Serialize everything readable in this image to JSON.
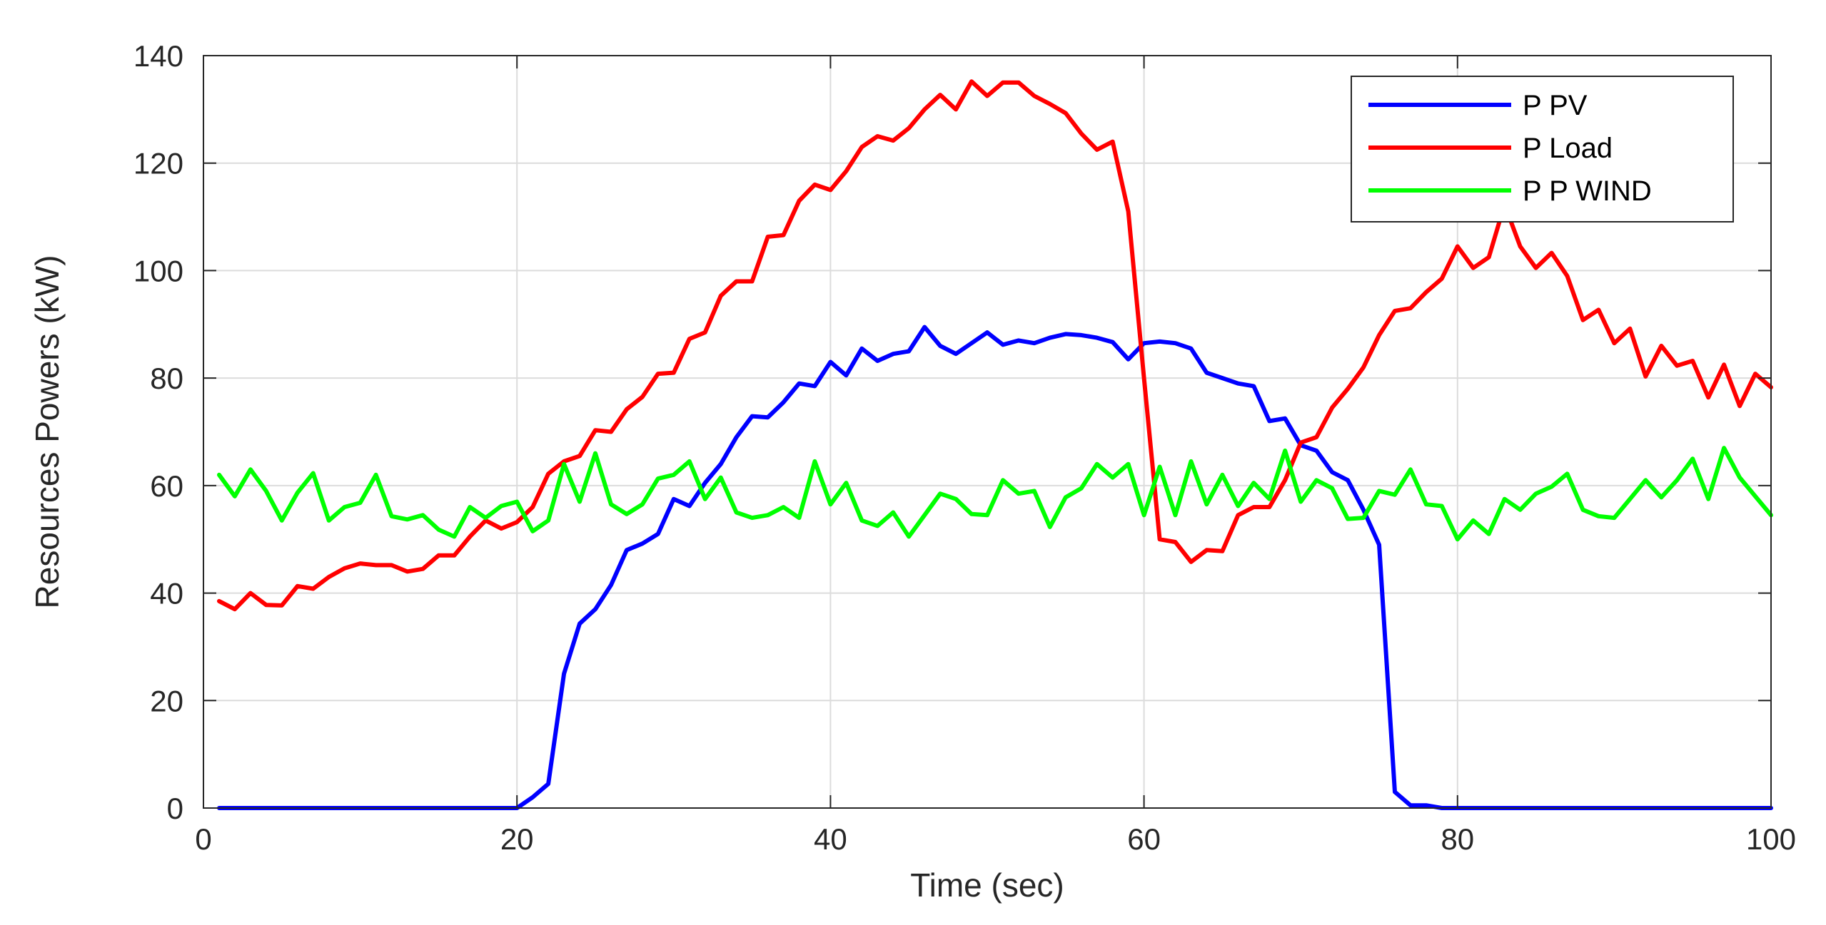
{
  "chart_data": {
    "type": "line",
    "title": "",
    "xlabel": "Time (sec)",
    "ylabel": "Resources Powers (kW)",
    "xlim": [
      0,
      100
    ],
    "ylim": [
      0,
      140
    ],
    "xticks": [
      0,
      20,
      40,
      60,
      80,
      100
    ],
    "yticks": [
      0,
      20,
      40,
      60,
      80,
      100,
      120,
      140
    ],
    "xtick_labels": [
      "0",
      "20",
      "40",
      "60",
      "80",
      "100"
    ],
    "ytick_labels": [
      "0",
      "20",
      "40",
      "60",
      "80",
      "100",
      "120",
      "140"
    ],
    "grid": true,
    "legend_position": "top-right",
    "series": [
      {
        "name": "P PV",
        "color": "#0000ff",
        "x": [
          1,
          2,
          3,
          4,
          5,
          6,
          7,
          8,
          9,
          10,
          11,
          12,
          13,
          14,
          15,
          16,
          17,
          18,
          19,
          20,
          21,
          22,
          23,
          24,
          25,
          26,
          27,
          28,
          29,
          30,
          31,
          32,
          33,
          34,
          35,
          36,
          37,
          38,
          39,
          40,
          41,
          42,
          43,
          44,
          45,
          46,
          47,
          48,
          49,
          50,
          51,
          52,
          53,
          54,
          55,
          56,
          57,
          58,
          59,
          60,
          61,
          62,
          63,
          64,
          65,
          66,
          67,
          68,
          69,
          70,
          71,
          72,
          73,
          74,
          75,
          76,
          77,
          78,
          79,
          80,
          81,
          82,
          83,
          84,
          85,
          86,
          87,
          88,
          89,
          90,
          91,
          92,
          93,
          94,
          95,
          96,
          97,
          98,
          99,
          100
        ],
        "y": [
          0,
          0,
          0,
          0,
          0,
          0,
          0,
          0,
          0,
          0,
          0,
          0,
          0,
          0,
          0,
          0,
          0,
          0,
          0,
          0,
          2,
          4.5,
          25,
          34.3,
          37,
          41.5,
          48,
          49.2,
          51,
          57.5,
          56.2,
          60.5,
          64,
          69,
          72.9,
          72.7,
          75.5,
          79,
          78.5,
          83,
          80.5,
          85.5,
          83.2,
          84.5,
          85,
          89.5,
          86,
          84.5,
          86.5,
          88.5,
          86.2,
          87,
          86.5,
          87.5,
          88.2,
          88,
          87.5,
          86.7,
          83.5,
          86.5,
          86.8,
          86.5,
          85.5,
          81,
          80,
          79,
          78.5,
          72,
          72.5,
          67.5,
          66.5,
          62.5,
          61,
          55.5,
          49,
          3,
          0.5,
          0.5,
          0,
          0,
          0,
          0,
          0,
          0,
          0,
          0,
          0,
          0,
          0,
          0,
          0,
          0,
          0,
          0,
          0,
          0,
          0,
          0,
          0,
          0
        ]
      },
      {
        "name": "P Load",
        "color": "#ff0000",
        "x": [
          1,
          2,
          3,
          4,
          5,
          6,
          7,
          8,
          9,
          10,
          11,
          12,
          13,
          14,
          15,
          16,
          17,
          18,
          19,
          20,
          21,
          22,
          23,
          24,
          25,
          26,
          27,
          28,
          29,
          30,
          31,
          32,
          33,
          34,
          35,
          36,
          37,
          38,
          39,
          40,
          41,
          42,
          43,
          44,
          45,
          46,
          47,
          48,
          49,
          50,
          51,
          52,
          53,
          54,
          55,
          56,
          57,
          58,
          59,
          60,
          61,
          62,
          63,
          64,
          65,
          66,
          67,
          68,
          69,
          70,
          71,
          72,
          73,
          74,
          75,
          76,
          77,
          78,
          79,
          80,
          81,
          82,
          83,
          84,
          85,
          86,
          87,
          88,
          89,
          90,
          91,
          92,
          93,
          94,
          95,
          96,
          97,
          98,
          99,
          100
        ],
        "y": [
          38.5,
          37,
          40,
          37.8,
          37.7,
          41.3,
          40.8,
          43,
          44.6,
          45.5,
          45.2,
          45.2,
          44,
          44.5,
          47,
          47,
          50.5,
          53.5,
          52,
          53.2,
          56,
          62.2,
          64.5,
          65.5,
          70.3,
          70,
          74.2,
          76.5,
          80.8,
          81,
          87.3,
          88.5,
          95.3,
          98,
          98,
          106.3,
          106.6,
          113,
          116,
          115,
          118.5,
          123,
          125,
          124.2,
          126.5,
          130,
          132.7,
          130,
          135.2,
          132.5,
          135,
          135,
          132.5,
          131,
          129.3,
          125.5,
          122.5,
          124,
          111,
          80,
          50,
          49.5,
          45.8,
          48,
          47.8,
          54.5,
          56,
          56,
          61,
          68,
          69,
          74.5,
          78,
          82,
          88,
          92.5,
          93,
          96,
          98.5,
          104.5,
          100.5,
          102.5,
          112.3,
          104.5,
          100.5,
          103.3,
          99,
          90.8,
          92.7,
          86.5,
          89.2,
          80.3,
          86,
          82.3,
          83.2,
          76.4,
          82.5,
          74.8,
          80.8,
          78.3
        ]
      },
      {
        "name": "P P WIND",
        "color": "#00ff00",
        "x": [
          1,
          2,
          3,
          4,
          5,
          6,
          7,
          8,
          9,
          10,
          11,
          12,
          13,
          14,
          15,
          16,
          17,
          18,
          19,
          20,
          21,
          22,
          23,
          24,
          25,
          26,
          27,
          28,
          29,
          30,
          31,
          32,
          33,
          34,
          35,
          36,
          37,
          38,
          39,
          40,
          41,
          42,
          43,
          44,
          45,
          46,
          47,
          48,
          49,
          50,
          51,
          52,
          53,
          54,
          55,
          56,
          57,
          58,
          59,
          60,
          61,
          62,
          63,
          64,
          65,
          66,
          67,
          68,
          69,
          70,
          71,
          72,
          73,
          74,
          75,
          76,
          77,
          78,
          79,
          80,
          81,
          82,
          83,
          84,
          85,
          86,
          87,
          88,
          89,
          90,
          91,
          92,
          93,
          94,
          95,
          96,
          97,
          98,
          99,
          100
        ],
        "y": [
          62,
          58,
          63,
          59,
          53.5,
          58.7,
          62.3,
          53.5,
          56,
          56.8,
          62,
          54.3,
          53.7,
          54.5,
          51.8,
          50.5,
          56,
          54,
          56.2,
          57,
          51.5,
          53.5,
          64,
          57,
          66,
          56.5,
          54.7,
          56.5,
          61.3,
          62,
          64.5,
          57.5,
          61.5,
          55,
          54,
          54.5,
          56,
          54,
          64.5,
          56.5,
          60.5,
          53.5,
          52.5,
          55,
          50.5,
          54.5,
          58.5,
          57.5,
          54.7,
          54.5,
          61,
          58.5,
          59,
          52.3,
          57.8,
          59.5,
          64,
          61.5,
          64,
          54.5,
          63.5,
          54.5,
          64.5,
          56.5,
          62,
          56.2,
          60.5,
          57.5,
          66.5,
          57,
          61,
          59.5,
          53.8,
          54,
          59,
          58.3,
          63,
          56.5,
          56.2,
          50,
          53.5,
          51,
          57.5,
          55.5,
          58.5,
          59.8,
          62.2,
          55.5,
          54.3,
          54,
          57.5,
          61,
          57.8,
          61,
          65,
          57.5,
          67,
          61.5,
          58,
          54.5
        ]
      }
    ]
  }
}
